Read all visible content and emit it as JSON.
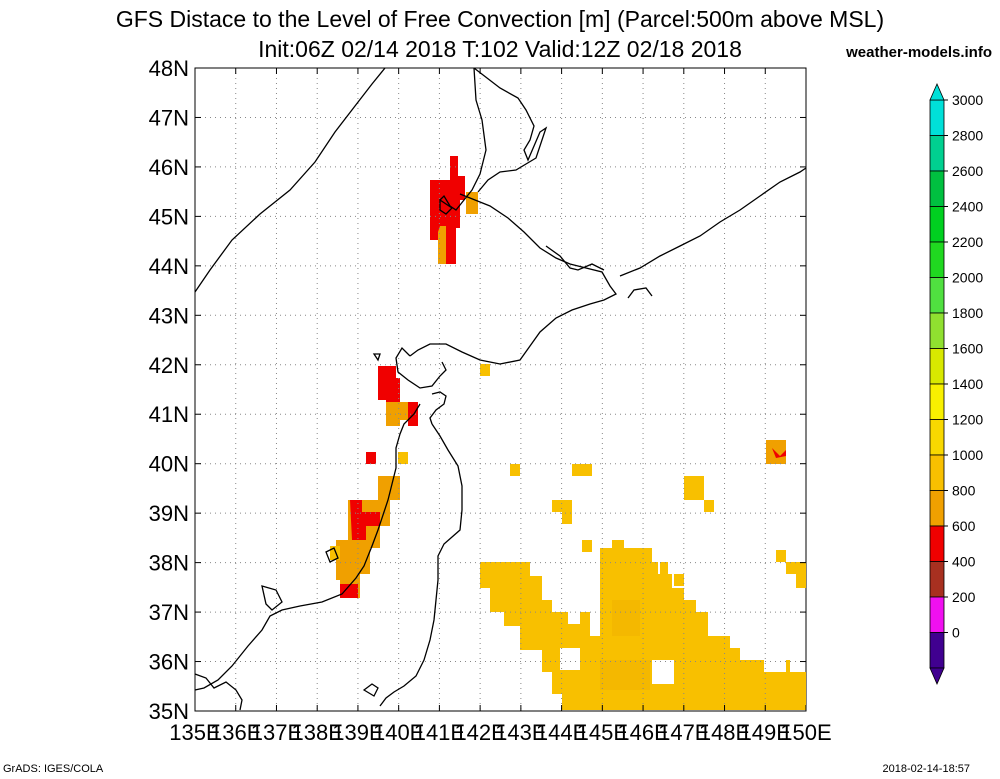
{
  "header": {
    "title_line1": "GFS Distace to the Level of Free Convection [m] (Parcel:500m above MSL)",
    "title_line2": "Init:06Z 02/14 2018 T:102 Valid:12Z 02/18 2018",
    "site": "weather-models.info"
  },
  "footer": {
    "left": "GrADS: IGES/COLA",
    "right": "2018-02-14-18:57"
  },
  "map": {
    "lon_range": [
      135,
      150
    ],
    "lat_range": [
      35,
      48
    ],
    "lat_labels": [
      "48N",
      "47N",
      "46N",
      "45N",
      "44N",
      "43N",
      "42N",
      "41N",
      "40N",
      "39N",
      "38N",
      "37N",
      "36N",
      "35N"
    ],
    "lon_labels": [
      "135E",
      "136E",
      "137E",
      "138E",
      "139E",
      "140E",
      "141E",
      "142E",
      "143E",
      "144E",
      "145E",
      "146E",
      "147E",
      "148E",
      "149E",
      "150E"
    ],
    "gridlines": true
  },
  "colorbar": {
    "labels": [
      "3000",
      "2800",
      "2600",
      "2400",
      "2200",
      "2000",
      "1800",
      "1600",
      "1400",
      "1200",
      "1000",
      "800",
      "600",
      "400",
      "200",
      "0"
    ],
    "colors": [
      "#00e0d8",
      "#00d090",
      "#00c040",
      "#00d020",
      "#20d820",
      "#50e040",
      "#90e030",
      "#d8e800",
      "#f8f000",
      "#f8d800",
      "#f8c000",
      "#f0a000",
      "#f00000",
      "#a83020",
      "#f010f0",
      "#400090"
    ]
  }
}
